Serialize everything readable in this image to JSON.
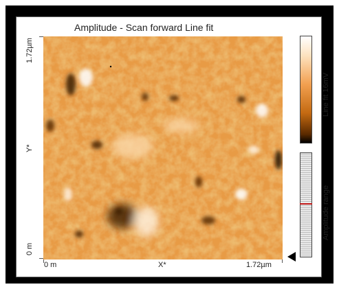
{
  "window": {
    "title": "Amplitude - Scan forward   Line fit"
  },
  "axes": {
    "y_top": "1.72µm",
    "y_label": "Y*",
    "y_bottom": "0 m",
    "x_left": "0 m",
    "x_label": "X*",
    "x_right": "1.72µm"
  },
  "colorbar": {
    "label": "Line fit 16mV",
    "colors": [
      "#000000",
      "#c46a12",
      "#f2a050",
      "#ffffff"
    ]
  },
  "range": {
    "label": "Amplitude range",
    "marker_color": "#c01818"
  },
  "icons": {
    "range_arrow": "triangle-left-icon"
  }
}
